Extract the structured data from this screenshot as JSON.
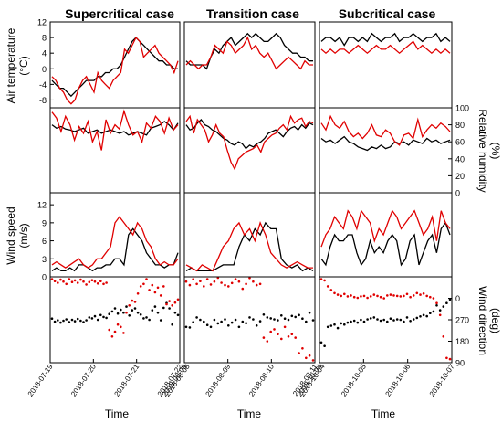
{
  "chart_data": {
    "type": "line",
    "colors": {
      "series_a": "#e00000",
      "series_b": "#000000"
    },
    "columns": [
      {
        "title": "Supercritical case",
        "xlabel": "Time",
        "x_ticks": [
          "2018-07-19",
          "2018-07-20",
          "2018-07-21",
          "2018-07-22"
        ],
        "x_end_label": "2018-08-08"
      },
      {
        "title": "Transition case",
        "xlabel": "Time",
        "x_ticks": [
          "2018-08-08",
          "2018-08-09",
          "2018-08-10",
          "2018-08-11"
        ],
        "x_end_label": "2018-10-04"
      },
      {
        "title": "Subcritical case",
        "xlabel": "Time",
        "x_ticks": [
          "2018-10-04",
          "2018-10-05",
          "2018-10-06",
          "2018-10-07"
        ],
        "x_end_label": ""
      }
    ],
    "rows": [
      {
        "key": "air_temperature",
        "ylabel_line1": "Air temperature",
        "ylabel_line2": "(°C)",
        "axis_side": "left",
        "ylim": [
          -10,
          12
        ],
        "ticks": [
          "-8",
          "-4",
          "0",
          "4",
          "8",
          "12"
        ],
        "tick_values": [
          -8,
          -4,
          0,
          4,
          8,
          12
        ]
      },
      {
        "key": "relative_humidity",
        "ylabel_line1": "Relative humidity",
        "ylabel_line2": "(%)",
        "axis_side": "right",
        "ylim": [
          0,
          100
        ],
        "ticks": [
          "0",
          "20",
          "40",
          "60",
          "80",
          "100"
        ],
        "tick_values": [
          0,
          20,
          40,
          60,
          80,
          100
        ]
      },
      {
        "key": "wind_speed",
        "ylabel_line1": "Wind speed",
        "ylabel_line2": "(m/s)",
        "axis_side": "left",
        "ylim": [
          0,
          14
        ],
        "ticks": [
          "0",
          "3",
          "6",
          "9",
          "12"
        ],
        "tick_values": [
          0,
          3,
          6,
          9,
          12
        ]
      },
      {
        "key": "wind_direction",
        "ylabel_line1": "Wind direction",
        "ylabel_line2": "(deg)",
        "axis_side": "right",
        "ylim": [
          90,
          450
        ],
        "ticks": [
          "90",
          "180",
          "270",
          "0"
        ],
        "tick_values": [
          90,
          180,
          270,
          360
        ]
      }
    ],
    "panels": [
      [
        {
          "red": [
            -2,
            -3,
            -5,
            -6,
            -8,
            -9,
            -8,
            -5,
            -3,
            -2,
            -4,
            -6,
            -1,
            -3,
            -4,
            -5,
            -3,
            -2,
            -1,
            5,
            4,
            6,
            8,
            7,
            3,
            4,
            5,
            6,
            4,
            3,
            2,
            1,
            -1,
            2
          ],
          "black": [
            -3,
            -4,
            -5,
            -5,
            -6,
            -7,
            -6,
            -5,
            -4,
            -3,
            -3,
            -3,
            -2,
            -2,
            -1,
            -1,
            0,
            0,
            1,
            3,
            5,
            7,
            8,
            7,
            6,
            5,
            4,
            3,
            2,
            2,
            1,
            1,
            0,
            0
          ]
        },
        {
          "red": [
            95,
            88,
            72,
            90,
            80,
            62,
            78,
            70,
            84,
            60,
            72,
            50,
            86,
            70,
            80,
            75,
            96,
            80,
            68,
            72,
            60,
            82,
            76,
            90,
            84,
            70,
            88,
            74,
            80
          ],
          "black": [
            80,
            76,
            78,
            75,
            74,
            72,
            74,
            76,
            70,
            72,
            74,
            70,
            72,
            74,
            72,
            70,
            72,
            68,
            70,
            72,
            70,
            68,
            76,
            78,
            80,
            84,
            80,
            74,
            82
          ]
        },
        {
          "red": [
            2,
            2.5,
            2,
            1.5,
            2,
            2.5,
            3,
            2,
            1.5,
            2,
            3,
            3,
            4,
            5,
            9,
            10,
            9,
            8,
            7,
            9,
            8,
            6,
            5,
            3,
            2,
            2.5,
            2,
            2,
            3
          ],
          "black": [
            1,
            1.5,
            1,
            1,
            1.5,
            1,
            2,
            2,
            1.5,
            1,
            1.5,
            1.5,
            2,
            2,
            3,
            3,
            2,
            7,
            8,
            7,
            6,
            4,
            3,
            2,
            2,
            1.5,
            2,
            2,
            4
          ]
        },
        {
          "red": [
            440,
            432,
            425,
            438,
            430,
            420,
            440,
            428,
            435,
            425,
            438,
            430,
            418,
            428,
            436,
            430,
            422,
            432,
            420,
            425,
            228,
            200,
            220,
            250,
            240,
            215,
            300,
            330,
            350,
            345,
            380,
            410,
            420,
            440,
            395,
            415,
            385,
            405,
            372,
            410,
            335,
            348,
            330,
            342,
            355
          ],
          "black": [
            275,
            262,
            268,
            258,
            266,
            272,
            260,
            270,
            264,
            274,
            266,
            260,
            268,
            280,
            276,
            285,
            270,
            290,
            282,
            278,
            294,
            305,
            318,
            296,
            312,
            300,
            325,
            288,
            310,
            318,
            300,
            292,
            276,
            280,
            270,
            310,
            325,
            300,
            268,
            320,
            340,
            318,
            250,
            300,
            290
          ]
        }
      ],
      [
        {
          "red": [
            1,
            2,
            1,
            0,
            1,
            1,
            3,
            6,
            5,
            4,
            7,
            6,
            4,
            5,
            6,
            8,
            5,
            6,
            4,
            3,
            4,
            2,
            0,
            1,
            2,
            3,
            2,
            1,
            0,
            2,
            1,
            1
          ],
          "black": [
            2,
            1,
            1,
            1,
            1,
            0,
            3,
            5,
            4,
            6,
            7,
            8,
            6,
            7,
            8,
            9,
            8,
            9,
            8,
            7,
            7,
            8,
            9,
            8,
            6,
            5,
            4,
            4,
            3,
            3,
            2,
            2
          ]
        },
        {
          "red": [
            84,
            90,
            70,
            86,
            80,
            74,
            60,
            68,
            80,
            70,
            66,
            50,
            36,
            28,
            40,
            44,
            48,
            50,
            52,
            56,
            48,
            60,
            64,
            68,
            70,
            76,
            80,
            74,
            90,
            82,
            86,
            88,
            78,
            84,
            82
          ],
          "black": [
            80,
            74,
            76,
            82,
            86,
            80,
            78,
            74,
            72,
            68,
            64,
            62,
            58,
            56,
            60,
            58,
            52,
            56,
            54,
            58,
            60,
            64,
            70,
            72,
            74,
            70,
            66,
            72,
            76,
            78,
            74,
            80,
            76,
            82,
            80
          ]
        },
        {
          "red": [
            2,
            1.5,
            1,
            2,
            1.5,
            1,
            3,
            5,
            6,
            8,
            9,
            7,
            8,
            6,
            9,
            7,
            4,
            3,
            2,
            1.5,
            2,
            2.5,
            2,
            1.5,
            1.5
          ],
          "black": [
            1,
            1.5,
            1,
            1,
            1,
            1,
            1.5,
            2,
            2,
            2,
            5,
            7,
            6,
            8,
            7,
            9,
            8,
            8,
            3,
            2,
            1.5,
            2,
            1,
            1.5,
            1
          ]
        },
        {
          "red": [
            430,
            415,
            440,
            420,
            432,
            410,
            440,
            418,
            430,
            446,
            425,
            415,
            410,
            424,
            440,
            430,
            400,
            420,
            445,
            430,
            415,
            420,
            195,
            180,
            220,
            230,
            210,
            190,
            240,
            200,
            210,
            195,
            130,
            150,
            110,
            120,
            100
          ],
          "black": [
            240,
            238,
            260,
            280,
            270,
            262,
            248,
            240,
            270,
            255,
            262,
            272,
            246,
            258,
            270,
            240,
            262,
            256,
            280,
            272,
            246,
            264,
            292,
            280,
            276,
            272,
            268,
            288,
            275,
            270,
            286,
            282,
            290,
            275,
            262,
            300,
            268
          ]
        }
      ],
      [
        {
          "red": [
            5,
            4,
            5,
            4,
            5,
            5,
            4,
            5,
            6,
            5,
            4,
            5,
            6,
            5,
            5,
            6,
            5,
            4,
            5,
            6,
            7,
            5,
            6,
            5,
            4,
            5,
            4,
            5,
            4
          ],
          "black": [
            7,
            8,
            8,
            7,
            8,
            6,
            8,
            8,
            7,
            8,
            7,
            9,
            8,
            7,
            8,
            8,
            9,
            7,
            8,
            8,
            9,
            8,
            7,
            8,
            8,
            9,
            7,
            8,
            7
          ]
        },
        {
          "red": [
            82,
            74,
            90,
            80,
            76,
            84,
            72,
            66,
            70,
            64,
            70,
            80,
            68,
            66,
            74,
            70,
            60,
            56,
            68,
            70,
            64,
            86,
            66,
            74,
            80,
            76,
            82,
            78,
            72
          ],
          "black": [
            64,
            60,
            62,
            58,
            62,
            66,
            60,
            58,
            54,
            52,
            50,
            54,
            52,
            56,
            52,
            54,
            60,
            58,
            60,
            56,
            62,
            60,
            58,
            64,
            60,
            62,
            58,
            60,
            62
          ]
        },
        {
          "red": [
            5,
            7,
            8,
            10,
            9,
            8,
            11,
            10,
            8,
            11,
            10,
            9,
            6,
            8,
            7,
            9,
            11,
            10,
            8,
            9,
            10,
            11,
            9,
            7,
            8,
            10,
            6,
            11,
            9,
            8
          ],
          "black": [
            3,
            2,
            5,
            7,
            6,
            6,
            7,
            7,
            4,
            2,
            3,
            6,
            4,
            5,
            4,
            6,
            7,
            6,
            2,
            3,
            6,
            7,
            2,
            4,
            6,
            7,
            4,
            8,
            9,
            7
          ]
        },
        {
          "red": [
            440,
            435,
            410,
            395,
            382,
            375,
            370,
            378,
            368,
            372,
            365,
            362,
            368,
            370,
            362,
            368,
            375,
            370,
            365,
            360,
            372,
            375,
            372,
            370,
            368,
            370,
            378,
            365,
            372,
            382,
            375,
            380,
            370,
            365,
            360,
            340,
            290,
            200,
            110,
            105
          ],
          "black": [
            175,
            160,
            240,
            245,
            250,
            235,
            255,
            250,
            258,
            262,
            266,
            258,
            270,
            262,
            272,
            276,
            280,
            272,
            266,
            270,
            262,
            275,
            268,
            272,
            270,
            262,
            280,
            265,
            272,
            278,
            284,
            290,
            285,
            298,
            305,
            330,
            310,
            325,
            340,
            355
          ]
        }
      ]
    ]
  }
}
